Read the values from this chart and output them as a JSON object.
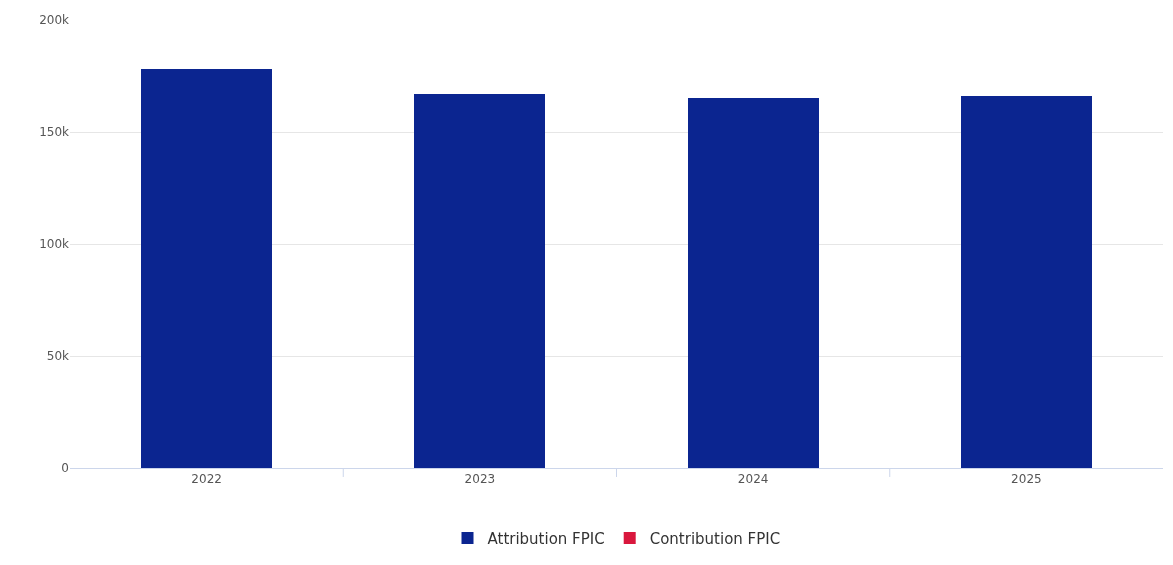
{
  "chart_data": {
    "type": "bar",
    "categories": [
      "2022",
      "2023",
      "2024",
      "2025"
    ],
    "stacked": true,
    "series": [
      {
        "name": "Contribution FPIC",
        "color": "#d9173d",
        "values": [
          null,
          null,
          null,
          null
        ]
      },
      {
        "name": "Attribution FPIC",
        "color": "#0b2590",
        "values": [
          178000,
          167000,
          165000,
          166000
        ]
      }
    ],
    "ylim": [
      0,
      200000
    ],
    "yticks": [
      {
        "value": 0,
        "label": "0"
      },
      {
        "value": 50000,
        "label": "50k"
      },
      {
        "value": 100000,
        "label": "100k"
      },
      {
        "value": 150000,
        "label": "150k"
      },
      {
        "value": 200000,
        "label": "200k"
      }
    ],
    "grid": "y",
    "legend": "bottom"
  }
}
